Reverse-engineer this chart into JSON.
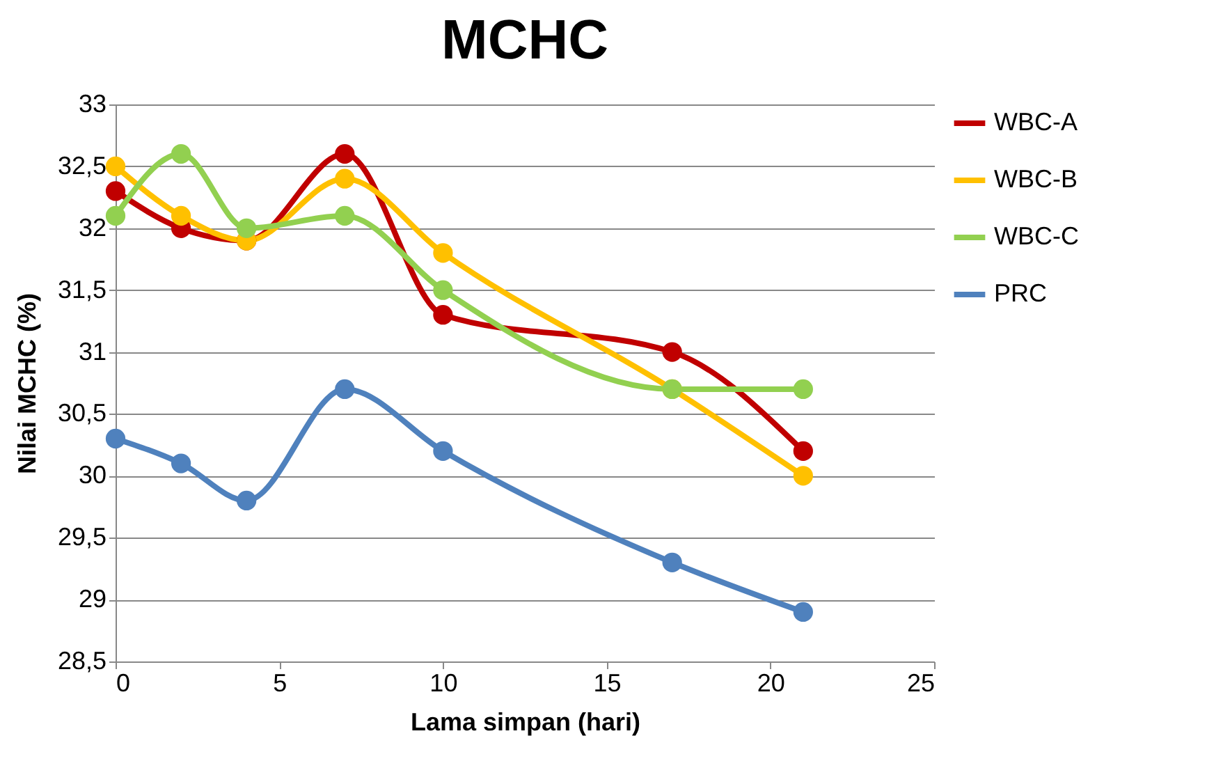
{
  "chart_data": {
    "type": "line",
    "title": "MCHC",
    "xlabel": "Lama simpan (hari)",
    "ylabel": "Nilai MCHC (%)",
    "x": [
      0,
      2,
      4,
      7,
      10,
      17,
      21
    ],
    "series": [
      {
        "name": "WBC-A",
        "color": "#c00000",
        "values": [
          32.3,
          32.0,
          31.9,
          32.6,
          31.3,
          31.0,
          30.2
        ]
      },
      {
        "name": "WBC-B",
        "color": "#ffc000",
        "values": [
          32.5,
          32.1,
          31.9,
          32.4,
          31.8,
          30.7,
          30.0
        ]
      },
      {
        "name": "WBC-C",
        "color": "#92d050",
        "values": [
          32.1,
          32.6,
          32.0,
          32.1,
          31.5,
          30.7,
          30.7
        ]
      },
      {
        "name": "PRC",
        "color": "#4f81bd",
        "values": [
          30.3,
          30.1,
          29.8,
          30.7,
          30.2,
          29.3,
          28.9
        ]
      }
    ],
    "xlim": [
      0,
      25
    ],
    "xticks": [
      0,
      5,
      10,
      15,
      20,
      25
    ],
    "ylim": [
      28.5,
      33
    ],
    "yticks": [
      {
        "value": 28.5,
        "label": "28,5"
      },
      29,
      {
        "value": 29.5,
        "label": "29,5"
      },
      30,
      {
        "value": 30.5,
        "label": "30,5"
      },
      31,
      {
        "value": 31.5,
        "label": "31,5"
      },
      32,
      {
        "value": 32.5,
        "label": "32,5"
      },
      33
    ],
    "grid": "y",
    "legend": "right",
    "marker": "circle",
    "line_style": "solid"
  }
}
